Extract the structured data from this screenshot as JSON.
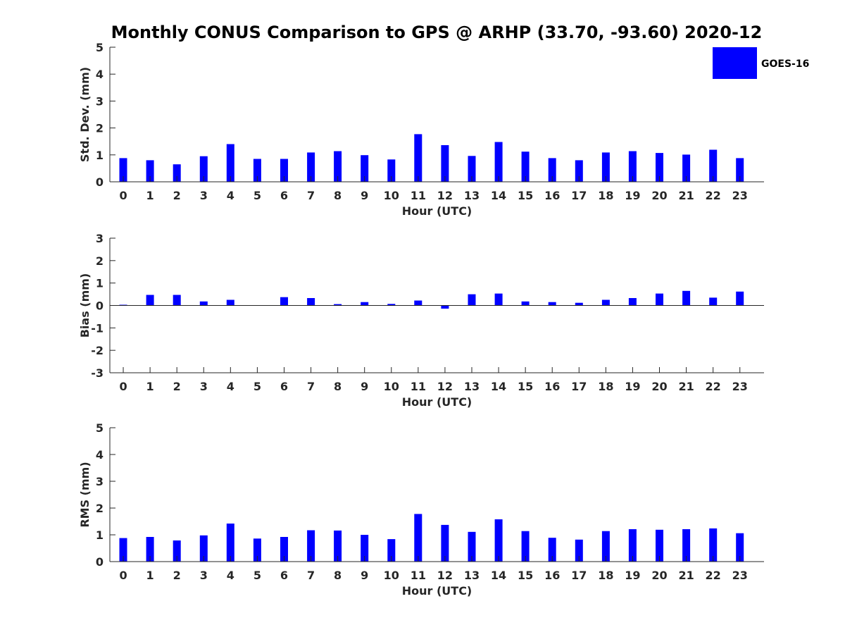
{
  "chart_data": {
    "type": "bar",
    "title": "Monthly CONUS Comparison to GPS @ ARHP (33.70, -93.60) 2020-12",
    "legend": {
      "entries": [
        "GOES-16"
      ],
      "placement": "top-right",
      "outside": true
    },
    "bar_color": "#0000ff",
    "axis_color": "#262626",
    "grid": false,
    "categories": [
      "0",
      "1",
      "2",
      "3",
      "4",
      "5",
      "6",
      "7",
      "8",
      "9",
      "10",
      "11",
      "12",
      "13",
      "14",
      "15",
      "16",
      "17",
      "18",
      "19",
      "20",
      "21",
      "22",
      "23"
    ],
    "panels": [
      {
        "xlabel": "Hour (UTC)",
        "ylabel": "Std. Dev. (mm)",
        "ylim": [
          0,
          5
        ],
        "yticks": [
          "0",
          "1",
          "2",
          "3",
          "4",
          "5"
        ],
        "series": [
          {
            "name": "GOES-16",
            "values": [
              0.88,
              0.8,
              0.65,
              0.95,
              1.4,
              0.85,
              0.85,
              1.09,
              1.14,
              0.99,
              0.83,
              1.77,
              1.36,
              0.96,
              1.48,
              1.12,
              0.88,
              0.8,
              1.09,
              1.14,
              1.07,
              1.01,
              1.19,
              0.88
            ]
          }
        ]
      },
      {
        "xlabel": "Hour (UTC)",
        "ylabel": "Bias (mm)",
        "ylim": [
          -3,
          3
        ],
        "yticks": [
          "-3",
          "-2",
          "-1",
          "0",
          "1",
          "2",
          "3"
        ],
        "series": [
          {
            "name": "GOES-16",
            "values": [
              0.03,
              0.47,
              0.47,
              0.18,
              0.25,
              0.01,
              0.37,
              0.33,
              0.06,
              0.15,
              0.07,
              0.22,
              -0.14,
              0.5,
              0.53,
              0.18,
              0.15,
              0.12,
              0.25,
              0.33,
              0.53,
              0.65,
              0.35,
              0.62
            ]
          }
        ]
      },
      {
        "xlabel": "Hour (UTC)",
        "ylabel": "RMS (mm)",
        "ylim": [
          0,
          5
        ],
        "yticks": [
          "0",
          "1",
          "2",
          "3",
          "4",
          "5"
        ],
        "series": [
          {
            "name": "GOES-16",
            "values": [
              0.88,
              0.92,
              0.79,
              0.98,
              1.42,
              0.86,
              0.92,
              1.17,
              1.16,
              1.0,
              0.84,
              1.78,
              1.37,
              1.11,
              1.58,
              1.14,
              0.89,
              0.82,
              1.14,
              1.21,
              1.19,
              1.21,
              1.24,
              1.06
            ]
          }
        ]
      }
    ]
  }
}
